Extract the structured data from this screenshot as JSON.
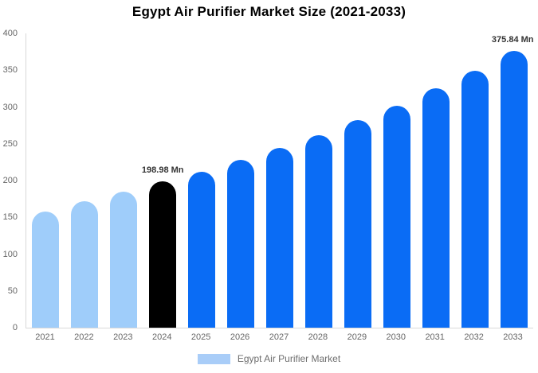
{
  "chart_data": {
    "type": "bar",
    "title": "Egypt Air Purifier Market Size (2021-2033)",
    "categories": [
      "2021",
      "2022",
      "2023",
      "2024",
      "2025",
      "2026",
      "2027",
      "2028",
      "2029",
      "2030",
      "2031",
      "2032",
      "2033"
    ],
    "values": [
      158,
      172,
      185,
      198.98,
      212,
      228,
      244,
      262,
      282,
      302,
      325,
      349,
      375.84
    ],
    "unit": "Mn",
    "bar_colors": [
      "#9fcdfa",
      "#9fcdfa",
      "#9fcdfa",
      "#000000",
      "#0a6cf5",
      "#0a6cf5",
      "#0a6cf5",
      "#0a6cf5",
      "#0a6cf5",
      "#0a6cf5",
      "#0a6cf5",
      "#0a6cf5",
      "#0a6cf5"
    ],
    "annotations": [
      {
        "category": "2024",
        "text": "198.98 Mn"
      },
      {
        "category": "2033",
        "text": "375.84 Mn"
      }
    ],
    "ylim": [
      0,
      400
    ],
    "yticks": [
      0,
      50,
      100,
      150,
      200,
      250,
      300,
      350,
      400
    ],
    "xlabel": "",
    "ylabel": "",
    "grid": false,
    "legend": {
      "label": "Egypt Air Purifier Market",
      "swatch_color": "#a9cdf8",
      "position": "bottom"
    }
  },
  "colors": {
    "historical_bar": "#9fcdfa",
    "current_year_bar": "#000000",
    "forecast_bar": "#0a6cf5",
    "axis_line": "#d9d9d9",
    "tick_text": "#666666",
    "annotation_text": "#333333",
    "title_text": "#000000",
    "legend_text": "#6e6e6e",
    "background": "#ffffff"
  }
}
